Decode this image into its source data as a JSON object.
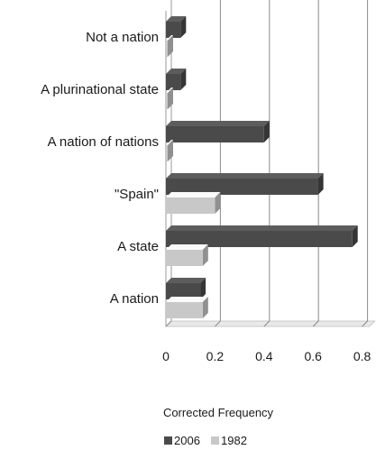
{
  "chart_data": {
    "type": "bar",
    "orientation": "horizontal",
    "categories": [
      "Not a nation",
      "A plurinational state",
      "A nation of nations",
      "\"Spain\"",
      "A state",
      "A nation"
    ],
    "series": [
      {
        "name": "2006",
        "values": [
          0.06,
          0.06,
          0.4,
          0.62,
          0.76,
          0.14
        ],
        "color": "#4a4a4a"
      },
      {
        "name": "1982",
        "values": [
          0.0,
          0.0,
          0.0,
          0.2,
          0.15,
          0.15
        ],
        "color": "#c8c8c8"
      }
    ],
    "xlabel": "Corrected Frequency",
    "xlim": [
      0,
      0.8
    ],
    "xticks": [
      "0",
      "0.2",
      "0.4",
      "0.6",
      "0.8"
    ],
    "grid": true,
    "legend_position": "bottom"
  }
}
